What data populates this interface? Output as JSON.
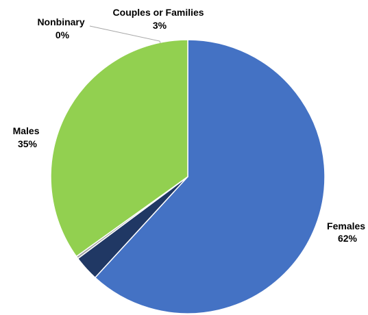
{
  "chart_data": {
    "type": "pie",
    "title": "",
    "slices": [
      {
        "label": "Females",
        "value": 62,
        "value_label": "62%",
        "color": "#4472C4"
      },
      {
        "label": "Couples or Families",
        "value": 3,
        "value_label": "3%",
        "color": "#203864"
      },
      {
        "label": "Nonbinary",
        "value": 0.3,
        "value_label": "0%",
        "color": "#A5A5A5"
      },
      {
        "label": "Males",
        "value": 35,
        "value_label": "35%",
        "color": "#92D050"
      }
    ],
    "start": "12 o'clock",
    "order": "counterclockwise",
    "legend": "none",
    "labels": "outside, with leader line for Nonbinary"
  }
}
